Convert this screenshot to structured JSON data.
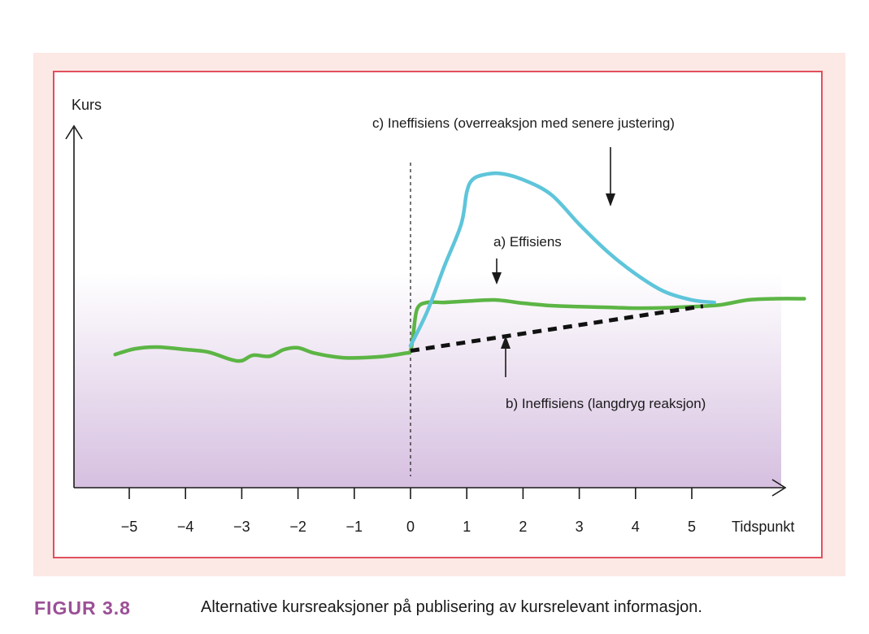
{
  "figure": {
    "label": "FIGUR 3.8",
    "caption": "Alternative kursreaksjoner på publisering av kursrelevant informasjon."
  },
  "colors": {
    "panel_bg": "#fce8e4",
    "frame_border": "#e0505e",
    "gradient_top": "#ffffff",
    "gradient_bottom": "#d6bfe0",
    "efficient": "#5cb545",
    "overreaction": "#5ec5da",
    "delayed": "#111111",
    "caption_label": "#9b4f96"
  },
  "chart_data": {
    "type": "line",
    "ylabel": "Kurs",
    "xlabel": "Tidspunkt",
    "x_ticks": [
      -5,
      -4,
      -3,
      -2,
      -1,
      0,
      1,
      2,
      3,
      4,
      5
    ],
    "x_tick_labels": [
      "−5",
      "−4",
      "−3",
      "−2",
      "−1",
      "0",
      "1",
      "2",
      "3",
      "4",
      "5"
    ],
    "xlim": [
      -5.3,
      6.7
    ],
    "ylim": [
      0,
      10
    ],
    "event_line_x": 0,
    "grid": false,
    "series": [
      {
        "name": "a) Effisiens",
        "style": "solid",
        "x": [
          -5.25,
          -4.9,
          -4.5,
          -4.0,
          -3.6,
          -3.2,
          -3.0,
          -2.8,
          -2.5,
          -2.25,
          -2.0,
          -1.7,
          -1.2,
          -0.6,
          -0.1,
          0,
          0.05,
          0.12,
          0.3,
          0.6,
          1.0,
          1.5,
          2.0,
          2.5,
          3.0,
          3.5,
          4.0,
          4.5,
          5.0,
          5.5,
          6.0,
          6.5,
          7.0
        ],
        "y": [
          2.75,
          2.98,
          3.05,
          2.95,
          2.85,
          2.55,
          2.5,
          2.72,
          2.68,
          2.95,
          3.02,
          2.8,
          2.62,
          2.65,
          2.8,
          2.9,
          3.6,
          4.6,
          4.85,
          4.85,
          4.9,
          4.95,
          4.82,
          4.72,
          4.68,
          4.65,
          4.62,
          4.63,
          4.68,
          4.75,
          4.95,
          5.0,
          5.0
        ]
      },
      {
        "name": "b) Ineffisiens (langdryg reaksjon)",
        "style": "dashed",
        "x": [
          0,
          5.2
        ],
        "y": [
          2.9,
          4.7
        ]
      },
      {
        "name": "c) Ineffisiens (overreaksjon med senere justering)",
        "style": "solid",
        "x": [
          0,
          0.3,
          0.6,
          0.9,
          1.0,
          1.1,
          1.3,
          1.6,
          2.0,
          2.5,
          3.0,
          3.5,
          4.0,
          4.5,
          5.0,
          5.4
        ],
        "y": [
          3.1,
          4.5,
          6.3,
          8.0,
          9.3,
          9.8,
          10.0,
          10.05,
          9.8,
          9.2,
          8.0,
          6.9,
          6.0,
          5.3,
          4.95,
          4.85
        ]
      }
    ],
    "annotations": [
      {
        "text": "c) Ineffisiens (overreaksjon med senere justering)",
        "arrow": "down",
        "target_series": "c) Ineffisiens (overreaksjon med senere justering)"
      },
      {
        "text": "a) Effisiens",
        "arrow": "down",
        "target_series": "a) Effisiens"
      },
      {
        "text": "b) Ineffisiens (langdryg reaksjon)",
        "arrow": "up",
        "target_series": "b) Ineffisiens (langdryg reaksjon)"
      }
    ]
  }
}
